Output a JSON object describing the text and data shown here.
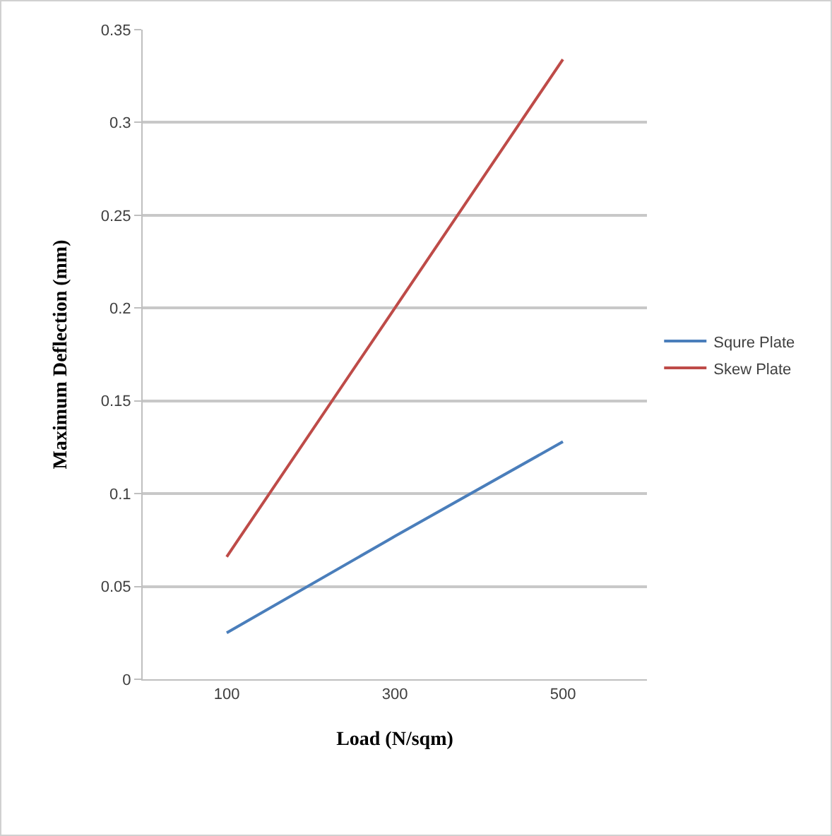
{
  "chart_data": {
    "type": "line",
    "xlabel": "Load (N/sqm)",
    "ylabel": "Maximum Deflection (mm)",
    "categories": [
      "100",
      "300",
      "500"
    ],
    "series": [
      {
        "name": "Squre Plate",
        "color": "#4a7ebb",
        "values": [
          0.025,
          0.077,
          0.128
        ]
      },
      {
        "name": "Skew Plate",
        "color": "#be4b48",
        "values": [
          0.066,
          0.2,
          0.334
        ]
      }
    ],
    "ylim": [
      0,
      0.35
    ],
    "yticks": [
      0,
      0.05,
      0.1,
      0.15,
      0.2,
      0.25,
      0.3,
      0.35
    ],
    "grid": "y",
    "legend": "right",
    "marker": "none",
    "line_style": "solid"
  }
}
